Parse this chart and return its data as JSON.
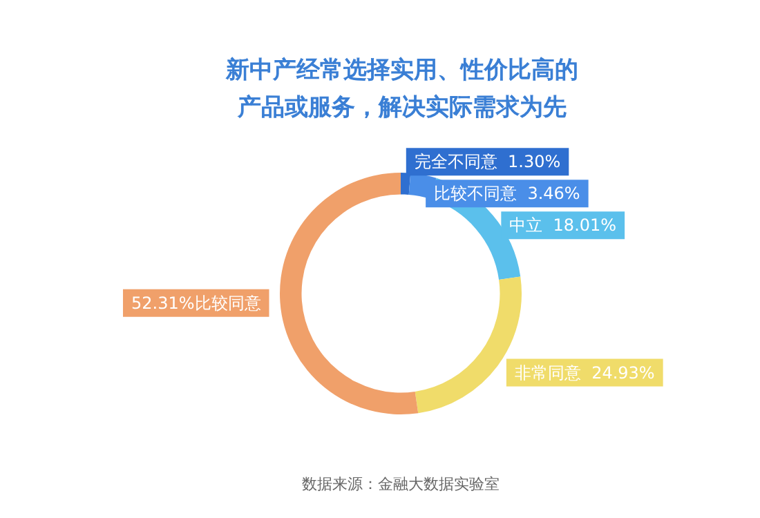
{
  "chart_data": {
    "type": "donut",
    "title": "新中产经常选择实用、性价比高的产品或服务，解决实际需求为先",
    "categories": [
      "完全不同意",
      "比较不同意",
      "中立",
      "非常同意",
      "比较同意"
    ],
    "values": [
      1.3,
      3.46,
      18.01,
      24.93,
      52.31
    ],
    "value_labels": [
      "1.30%",
      "3.46%",
      "18.01%",
      "24.93%",
      "52.31%"
    ],
    "colors": [
      "#2f6fd0",
      "#4a8ee8",
      "#5bc0ec",
      "#f0dc6a",
      "#f0a06a"
    ],
    "legend": false,
    "annotations": [
      "数据来源：金融大数据实验室"
    ]
  }
}
